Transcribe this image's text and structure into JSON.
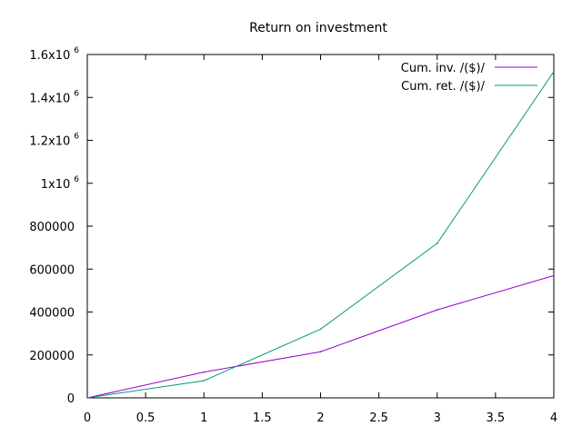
{
  "chart_data": {
    "type": "line",
    "title": "Return on investment",
    "xlabel": "",
    "ylabel": "",
    "xlim": [
      0,
      4
    ],
    "ylim": [
      0,
      1600000
    ],
    "grid": false,
    "legend_position": "top-right",
    "x_ticks": [
      {
        "value": 0,
        "label": "0"
      },
      {
        "value": 0.5,
        "label": "0.5"
      },
      {
        "value": 1,
        "label": "1"
      },
      {
        "value": 1.5,
        "label": "1.5"
      },
      {
        "value": 2,
        "label": "2"
      },
      {
        "value": 2.5,
        "label": "2.5"
      },
      {
        "value": 3,
        "label": "3"
      },
      {
        "value": 3.5,
        "label": "3.5"
      },
      {
        "value": 4,
        "label": "4"
      }
    ],
    "y_ticks": [
      {
        "value": 0,
        "label": "0",
        "exp": ""
      },
      {
        "value": 200000,
        "label": "200000",
        "exp": ""
      },
      {
        "value": 400000,
        "label": "400000",
        "exp": ""
      },
      {
        "value": 600000,
        "label": "600000",
        "exp": ""
      },
      {
        "value": 800000,
        "label": "800000",
        "exp": ""
      },
      {
        "value": 1000000,
        "label": "1x10",
        "exp": "6"
      },
      {
        "value": 1200000,
        "label": "1.2x10",
        "exp": "6"
      },
      {
        "value": 1400000,
        "label": "1.4x10",
        "exp": "6"
      },
      {
        "value": 1600000,
        "label": "1.6x10",
        "exp": "6"
      }
    ],
    "series": [
      {
        "name": "Cum. inv. /($)/",
        "color": "#9400d3",
        "x": [
          0,
          1,
          2,
          3,
          4
        ],
        "y": [
          0,
          120000,
          215000,
          410000,
          570000
        ]
      },
      {
        "name": "Cum. ret. /($)/",
        "color": "#009e73",
        "x": [
          0,
          1,
          2,
          3,
          4
        ],
        "y": [
          0,
          80000,
          320000,
          720000,
          1520000
        ]
      }
    ]
  }
}
